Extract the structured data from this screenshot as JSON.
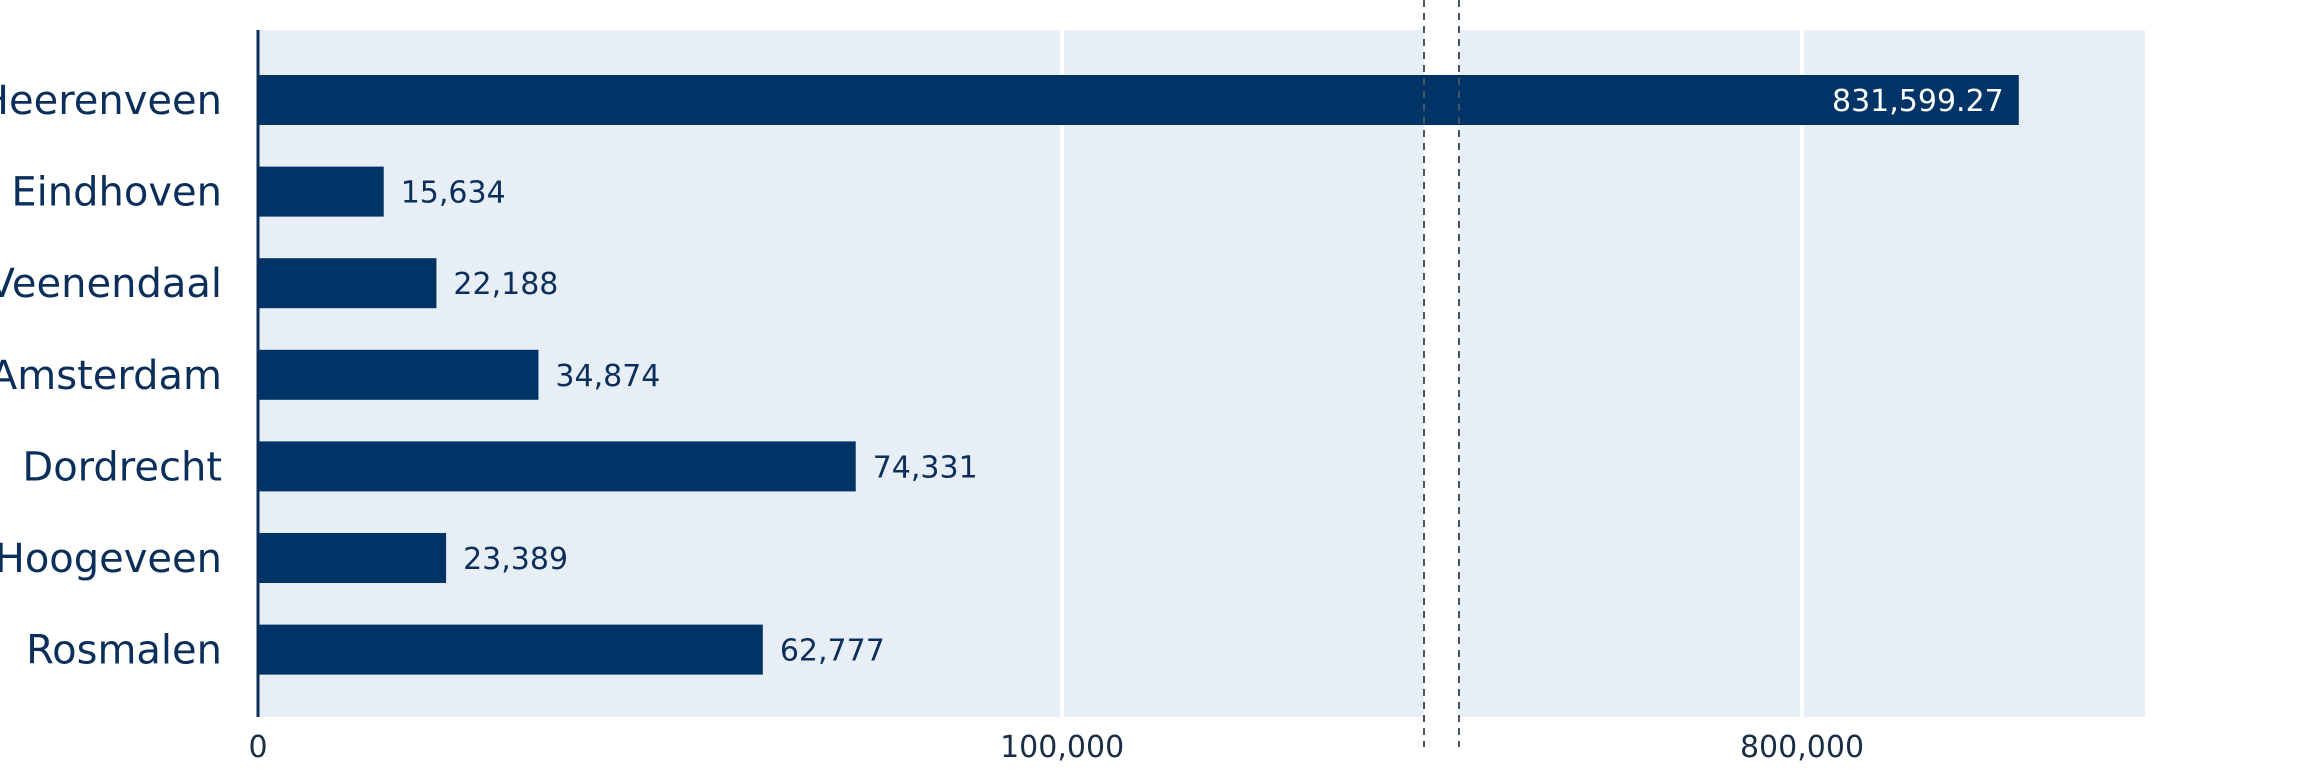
{
  "chart_data": {
    "type": "bar",
    "orientation": "horizontal",
    "categories": [
      "Heerenveen",
      "Eindhoven",
      "Veenendaal",
      "Amsterdam",
      "Dordrecht",
      "Hoogeveen",
      "Rosmalen"
    ],
    "values": [
      831599.27,
      15634,
      22188,
      34874,
      74331,
      23389,
      62777
    ],
    "value_labels": [
      "831,599.27",
      "15,634",
      "22,188",
      "34,874",
      "74,331",
      "23,389",
      "62,777"
    ],
    "x_ticks": [
      {
        "value": 0,
        "label": "0"
      },
      {
        "value": 100000,
        "label": "100,000"
      },
      {
        "value": 800000,
        "label": "800,000"
      }
    ],
    "axis_break": {
      "from": 145000,
      "to": 750000
    },
    "xlim": [
      0,
      850000
    ],
    "title": "",
    "xlabel": "",
    "ylabel": "",
    "grid": true,
    "legend": "none",
    "colors": {
      "bar": "#003366",
      "plot_background": "#e8eef6",
      "gridline": "#ffffff",
      "axis": "#0b2f5b",
      "text": "#0b2f5b"
    }
  }
}
